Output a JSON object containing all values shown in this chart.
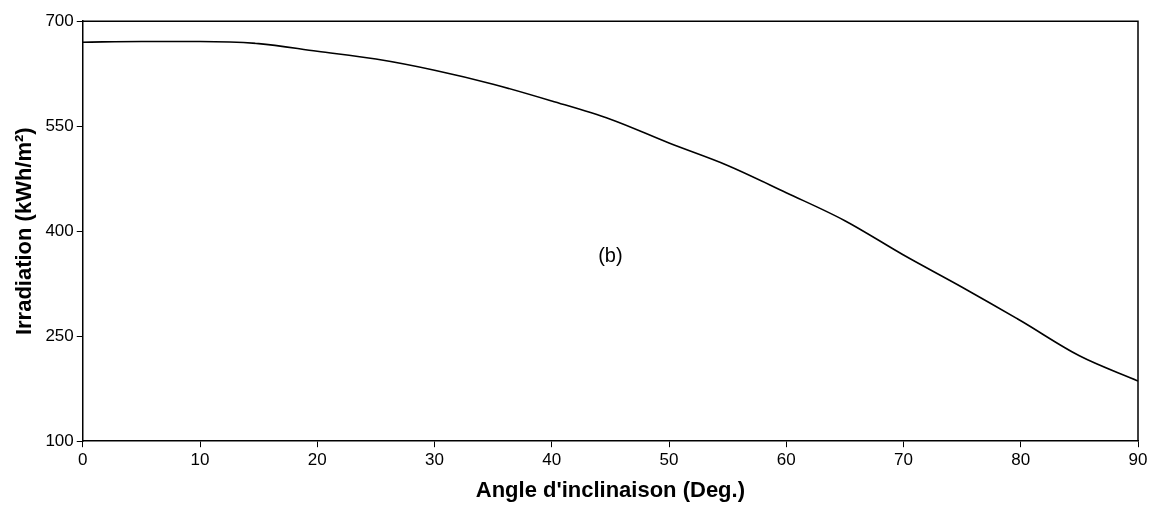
{
  "chart_data": {
    "type": "line",
    "xlabel": "Angle d'inclinaison (Deg.)",
    "ylabel": "Irradiation (kWh/m²)",
    "x": [
      0,
      5,
      10,
      15,
      20,
      25,
      30,
      35,
      40,
      45,
      50,
      55,
      60,
      65,
      70,
      75,
      80,
      85,
      90
    ],
    "series": [
      {
        "color": "#000000",
        "values": [
          670,
          671,
          671,
          668,
          657,
          646,
          630,
          610,
          586,
          560,
          526,
          494,
          455,
          415,
          366,
          320,
          272,
          222,
          186
        ]
      }
    ],
    "xlim": [
      0,
      90
    ],
    "xticks": [
      0,
      10,
      20,
      30,
      40,
      50,
      60,
      70,
      80,
      90
    ],
    "ylim": [
      100,
      700
    ],
    "yticks": [
      100,
      250,
      400,
      550,
      700
    ],
    "grid": false,
    "legend": false,
    "marker": "none",
    "line_style": "solid",
    "annotations": [
      "(b)"
    ]
  }
}
